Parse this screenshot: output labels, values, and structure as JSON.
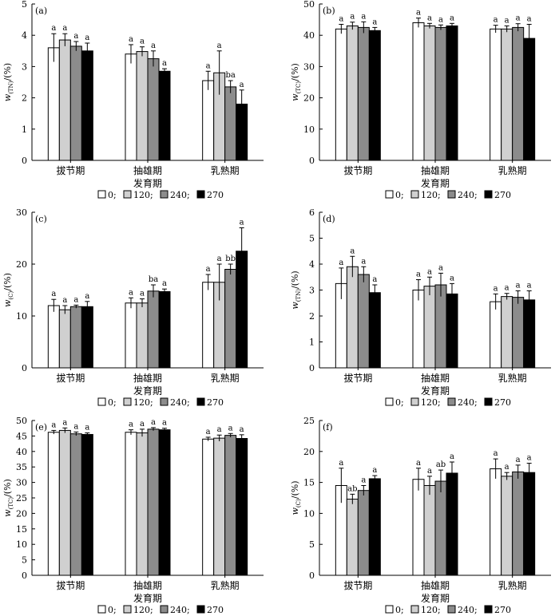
{
  "figure": {
    "legend": [
      {
        "label": "0;",
        "color": "#ffffff"
      },
      {
        "label": "120;",
        "color": "#d0d0d0"
      },
      {
        "label": "240;",
        "color": "#8c8c8c"
      },
      {
        "label": "270",
        "color": "#000000"
      }
    ]
  },
  "chart_data": [
    {
      "panel_label": "(a)",
      "type": "bar",
      "categories": [
        "拔节期",
        "抽雄期",
        "乳熟期"
      ],
      "xlabel": "发育期",
      "ylabel_main": "w",
      "ylabel_sub": "(TN)",
      "ylabel_unit": "/(%)",
      "ylim": [
        0,
        5
      ],
      "yticks": [
        "0",
        "1",
        "2",
        "3",
        "4",
        "5"
      ],
      "series": [
        {
          "name": "0",
          "values": [
            3.6,
            3.4,
            2.55
          ],
          "errors": [
            0.45,
            0.3,
            0.3
          ],
          "letters": [
            "a",
            "a",
            "a"
          ]
        },
        {
          "name": "120",
          "values": [
            3.85,
            3.48,
            2.8
          ],
          "errors": [
            0.2,
            0.15,
            0.7
          ],
          "letters": [
            "a",
            "a",
            "a"
          ]
        },
        {
          "name": "240",
          "values": [
            3.65,
            3.25,
            2.35
          ],
          "errors": [
            0.15,
            0.25,
            0.2
          ],
          "letters": [
            "a",
            "a",
            "ba"
          ]
        },
        {
          "name": "270",
          "values": [
            3.5,
            2.85,
            1.8
          ],
          "errors": [
            0.25,
            0.08,
            0.45
          ],
          "letters": [
            "a",
            "a",
            "a"
          ]
        }
      ]
    },
    {
      "panel_label": "(b)",
      "type": "bar",
      "categories": [
        "拔节期",
        "抽雄期",
        "乳熟期"
      ],
      "xlabel": "发育期",
      "ylabel_main": "w",
      "ylabel_sub": "(TC)",
      "ylabel_unit": "/(%)",
      "ylim": [
        0,
        50
      ],
      "yticks": [
        "0",
        "10",
        "20",
        "30",
        "40",
        "50"
      ],
      "series": [
        {
          "name": "0",
          "values": [
            42,
            44,
            42
          ],
          "errors": [
            1.5,
            1.5,
            1.2
          ],
          "letters": [
            "a",
            "a",
            "a"
          ]
        },
        {
          "name": "120",
          "values": [
            43,
            43,
            42
          ],
          "errors": [
            1.2,
            0.8,
            1.0
          ],
          "letters": [
            "a",
            "a",
            "a"
          ]
        },
        {
          "name": "240",
          "values": [
            42.5,
            42.5,
            42.5
          ],
          "errors": [
            1.8,
            0.8,
            1.2
          ],
          "letters": [
            "a",
            "a",
            "a"
          ]
        },
        {
          "name": "270",
          "values": [
            41.5,
            43,
            39
          ],
          "errors": [
            1.0,
            0.8,
            4.5
          ],
          "letters": [
            "a",
            "a",
            "a"
          ]
        }
      ]
    },
    {
      "panel_label": "(c)",
      "type": "bar",
      "categories": [
        "拔节期",
        "抽雄期",
        "乳熟期"
      ],
      "xlabel": "发育期",
      "ylabel_main": "w",
      "ylabel_sub": "(C)",
      "ylabel_unit": "/(%)",
      "ylim": [
        0,
        30
      ],
      "yticks": [
        "0",
        "10",
        "20",
        "30"
      ],
      "series": [
        {
          "name": "0",
          "values": [
            12,
            12.5,
            16.5
          ],
          "errors": [
            1.2,
            1.0,
            1.5
          ],
          "letters": [
            "a",
            "a",
            "a"
          ]
        },
        {
          "name": "120",
          "values": [
            11.2,
            12.5,
            16.5
          ],
          "errors": [
            0.8,
            0.8,
            3.5
          ],
          "letters": [
            "a",
            "a",
            "a"
          ]
        },
        {
          "name": "240",
          "values": [
            11.8,
            14.8,
            19
          ],
          "errors": [
            0.3,
            1.2,
            1.0
          ],
          "letters": [
            "a",
            "ba",
            "bb"
          ]
        },
        {
          "name": "270",
          "values": [
            11.8,
            14.7,
            22.5
          ],
          "errors": [
            1.0,
            0.5,
            4.5
          ],
          "letters": [
            "a",
            "a",
            "a"
          ]
        }
      ]
    },
    {
      "panel_label": "(d)",
      "type": "bar",
      "categories": [
        "拔节期",
        "抽雄期",
        "乳熟期"
      ],
      "xlabel": "发育期",
      "ylabel_main": "w",
      "ylabel_sub": "(TN)",
      "ylabel_unit": "/(%)",
      "ylim": [
        0,
        6
      ],
      "yticks": [
        "0",
        "1",
        "2",
        "3",
        "4",
        "5",
        "6"
      ],
      "series": [
        {
          "name": "0",
          "values": [
            3.25,
            3.0,
            2.55
          ],
          "errors": [
            0.6,
            0.4,
            0.3
          ],
          "letters": [
            "a",
            "a",
            "a"
          ]
        },
        {
          "name": "120",
          "values": [
            3.9,
            3.15,
            2.75
          ],
          "errors": [
            0.4,
            0.35,
            0.12
          ],
          "letters": [
            "a",
            "a",
            "a"
          ]
        },
        {
          "name": "240",
          "values": [
            3.6,
            3.2,
            2.72
          ],
          "errors": [
            0.3,
            0.45,
            0.25
          ],
          "letters": [
            "a",
            "a",
            "a"
          ]
        },
        {
          "name": "270",
          "values": [
            2.9,
            2.85,
            2.62
          ],
          "errors": [
            0.3,
            0.4,
            0.35
          ],
          "letters": [
            "a",
            "a",
            "a"
          ]
        }
      ]
    },
    {
      "panel_label": "(e)",
      "type": "bar",
      "categories": [
        "拔节期",
        "抽雄期",
        "乳熟期"
      ],
      "xlabel": "发育期",
      "ylabel_main": "w",
      "ylabel_sub": "(TC)",
      "ylabel_unit": "/(%)",
      "ylim": [
        0,
        50
      ],
      "yticks": [
        "0",
        "5",
        "10",
        "15",
        "20",
        "25",
        "30",
        "35",
        "40",
        "45",
        "50"
      ],
      "series": [
        {
          "name": "0",
          "values": [
            46.2,
            46.2,
            44
          ],
          "errors": [
            0.6,
            0.8,
            0.6
          ],
          "letters": [
            "a",
            "a",
            "a"
          ]
        },
        {
          "name": "120",
          "values": [
            46.8,
            46,
            44.3
          ],
          "errors": [
            0.8,
            1.2,
            1.0
          ],
          "letters": [
            "a",
            "a",
            "a"
          ]
        },
        {
          "name": "240",
          "values": [
            45.7,
            47.2,
            45.2
          ],
          "errors": [
            0.6,
            0.5,
            0.6
          ],
          "letters": [
            "a",
            "a",
            "a"
          ]
        },
        {
          "name": "270",
          "values": [
            45.5,
            47,
            44.2
          ],
          "errors": [
            0.5,
            0.5,
            1.2
          ],
          "letters": [
            "a",
            "a",
            "a"
          ]
        }
      ]
    },
    {
      "panel_label": "(f)",
      "type": "bar",
      "categories": [
        "拔节期",
        "抽雄期",
        "乳熟期"
      ],
      "xlabel": "发育期",
      "ylabel_main": "w",
      "ylabel_sub": "(C)",
      "ylabel_unit": "/(%)",
      "ylim": [
        0,
        25
      ],
      "yticks": [
        "0",
        "5",
        "10",
        "15",
        "20",
        "25"
      ],
      "series": [
        {
          "name": "0",
          "values": [
            14.5,
            15.5,
            17.2
          ],
          "errors": [
            2.8,
            1.8,
            1.6
          ],
          "letters": [
            "a",
            "a",
            "a"
          ]
        },
        {
          "name": "120",
          "values": [
            12.3,
            14.5,
            16
          ],
          "errors": [
            0.8,
            1.5,
            0.6
          ],
          "letters": [
            "ab",
            "a",
            "a"
          ]
        },
        {
          "name": "240",
          "values": [
            13.7,
            15.2,
            16.7
          ],
          "errors": [
            0.8,
            1.8,
            1.1
          ],
          "letters": [
            "a",
            "ab",
            "a"
          ]
        },
        {
          "name": "270",
          "values": [
            15.6,
            16.5,
            16.6
          ],
          "errors": [
            0.5,
            1.8,
            1.5
          ],
          "letters": [
            "a",
            "a",
            "a"
          ]
        }
      ]
    }
  ]
}
